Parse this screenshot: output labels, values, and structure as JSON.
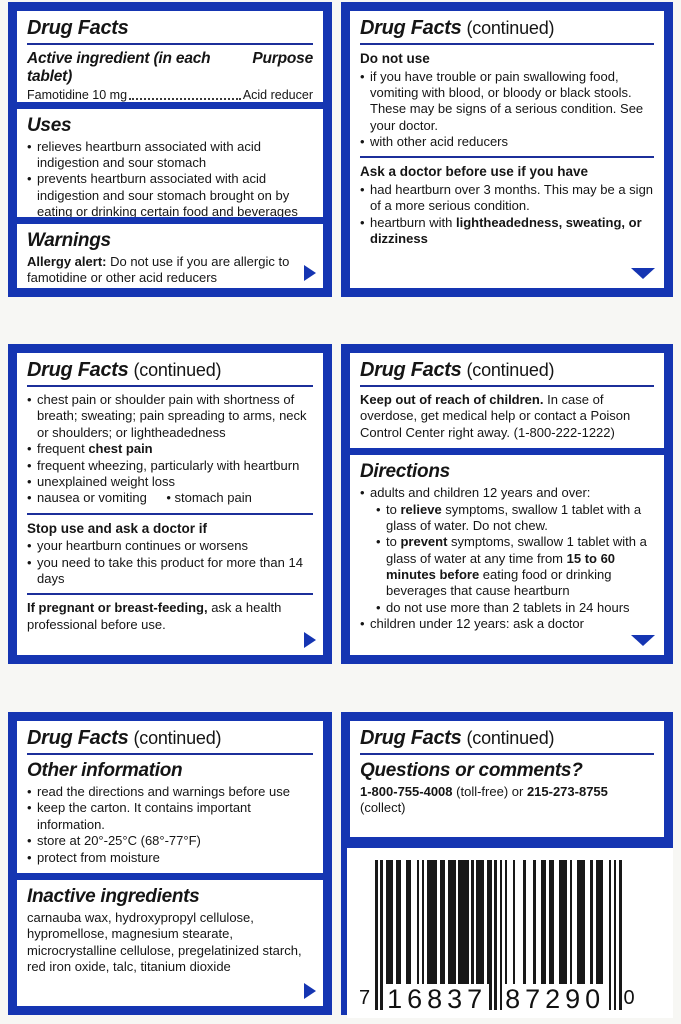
{
  "colors": {
    "band_blue": "#1535b2",
    "rule_blue": "#1c2f9a",
    "text": "#151515",
    "page_bg": "#f7f7f4",
    "bar_black": "#181818"
  },
  "band1": {
    "left": {
      "facts": {
        "title": "Drug Facts",
        "active_heading": "Active ingredient (in each tablet)",
        "purpose_heading": "Purpose",
        "ingredient": "Famotidine 10 mg",
        "purpose_value": "Acid reducer"
      },
      "uses": {
        "heading": "Uses",
        "items": [
          {
            "lv": 1,
            "segs": [
              {
                "t": "relieves heartburn associated with acid indigestion and sour stomach"
              }
            ]
          },
          {
            "lv": 1,
            "segs": [
              {
                "t": "prevents heartburn associated with acid indigestion and sour stomach brought on by eating or drinking certain food and beverages"
              }
            ]
          }
        ]
      },
      "warnings": {
        "heading": "Warnings",
        "para": [
          {
            "t": "Allergy alert:",
            "b": true
          },
          {
            "t": " Do not use if you are allergic to famotidine or other acid reducers"
          }
        ]
      }
    },
    "right": {
      "title": "Drug Facts",
      "continued": "(continued)",
      "do_not_use": {
        "heading": "Do not use",
        "items": [
          {
            "lv": 1,
            "segs": [
              {
                "t": "if you have trouble or pain swallowing food, vomiting with blood, or bloody or black stools. These may be signs of a serious condition. See your doctor."
              }
            ]
          },
          {
            "lv": 1,
            "segs": [
              {
                "t": "with other acid reducers"
              }
            ]
          }
        ]
      },
      "ask_doctor": {
        "heading": "Ask a doctor before use if you have",
        "items": [
          {
            "lv": 1,
            "segs": [
              {
                "t": "had heartburn over 3 months. This may be a sign of a more serious condition."
              }
            ]
          },
          {
            "lv": 1,
            "segs": [
              {
                "t": "heartburn with "
              },
              {
                "t": "lightheadedness, sweating, or dizziness",
                "b": true
              }
            ]
          }
        ]
      }
    }
  },
  "band2": {
    "left": {
      "title": "Drug Facts",
      "continued": "(continued)",
      "symptom_items": [
        {
          "lv": 1,
          "segs": [
            {
              "t": "chest pain or shoulder pain with shortness of breath; sweating; pain spreading to arms, neck or shoulders; or lightheadedness"
            }
          ]
        },
        {
          "lv": 1,
          "segs": [
            {
              "t": "frequent "
            },
            {
              "t": "chest pain",
              "b": true
            }
          ]
        },
        {
          "lv": 1,
          "segs": [
            {
              "t": "frequent wheezing, particularly with heartburn"
            }
          ]
        },
        {
          "lv": 1,
          "segs": [
            {
              "t": "unexplained weight loss"
            }
          ]
        },
        {
          "lv": 1,
          "segs": [
            {
              "t": "nausea or vomiting  • stomach pain"
            }
          ]
        }
      ],
      "stop_use": {
        "heading": "Stop use and ask a doctor if",
        "items": [
          {
            "lv": 1,
            "segs": [
              {
                "t": "your heartburn continues or worsens"
              }
            ]
          },
          {
            "lv": 1,
            "segs": [
              {
                "t": "you need to take this product for more than 14 days"
              }
            ]
          }
        ]
      },
      "pregnant_para": [
        {
          "t": "If pregnant or breast-feeding,",
          "b": true
        },
        {
          "t": " ask a health professional before use."
        }
      ]
    },
    "right": {
      "keep_out": {
        "title": "Drug Facts",
        "continued": "(continued)",
        "para": [
          {
            "t": "Keep out of reach of children.",
            "b": true
          },
          {
            "t": " In case of overdose, get medical help or contact a Poison Control Center right away. (1-800-222-1222)"
          }
        ]
      },
      "directions": {
        "heading": "Directions",
        "items": [
          {
            "lv": 1,
            "segs": [
              {
                "t": "adults and children 12 years and over:"
              }
            ]
          },
          {
            "lv": 2,
            "segs": [
              {
                "t": "to "
              },
              {
                "t": "relieve",
                "b": true
              },
              {
                "t": " symptoms, swallow 1 tablet with a glass of water. Do not chew."
              }
            ]
          },
          {
            "lv": 2,
            "segs": [
              {
                "t": "to "
              },
              {
                "t": "prevent",
                "b": true
              },
              {
                "t": " symptoms, swallow 1 tablet with a glass of water at any time from "
              },
              {
                "t": "15 to 60 minutes before",
                "b": true
              },
              {
                "t": " eating food or drinking beverages that cause heartburn"
              }
            ]
          },
          {
            "lv": 2,
            "segs": [
              {
                "t": "do not use more than 2 tablets in 24 hours"
              }
            ]
          },
          {
            "lv": 1,
            "segs": [
              {
                "t": "children under 12 years: ask a doctor"
              }
            ]
          }
        ]
      }
    }
  },
  "band3": {
    "left": {
      "other_info": {
        "title": "Drug Facts",
        "continued": "(continued)",
        "heading": "Other information",
        "items": [
          {
            "lv": 1,
            "segs": [
              {
                "t": "read the directions and warnings before use"
              }
            ]
          },
          {
            "lv": 1,
            "segs": [
              {
                "t": "keep the carton. It contains important information."
              }
            ]
          },
          {
            "lv": 1,
            "segs": [
              {
                "t": "store at 20°-25°C (68°-77°F)"
              }
            ]
          },
          {
            "lv": 1,
            "segs": [
              {
                "t": "protect from moisture"
              }
            ]
          }
        ]
      },
      "inactive": {
        "heading": "Inactive ingredients",
        "para": [
          {
            "t": "carnauba wax, hydroxypropyl cellulose, hypromellose, magnesium stearate, microcrystalline cellulose, pregelatinized starch, red iron oxide, talc, titanium dioxide"
          }
        ]
      }
    },
    "right": {
      "questions": {
        "title": "Drug Facts",
        "continued": "(continued)",
        "heading": "Questions or comments?",
        "para": [
          {
            "t": "1-800-755-4008",
            "b": true
          },
          {
            "t": " (toll-free) or "
          },
          {
            "t": "215-273-8755",
            "b": true
          },
          {
            "t": " (collect)"
          }
        ]
      },
      "barcode": {
        "lead_digit": "7",
        "group1": "16837",
        "group2": "87290",
        "end_digit": "0"
      }
    }
  }
}
